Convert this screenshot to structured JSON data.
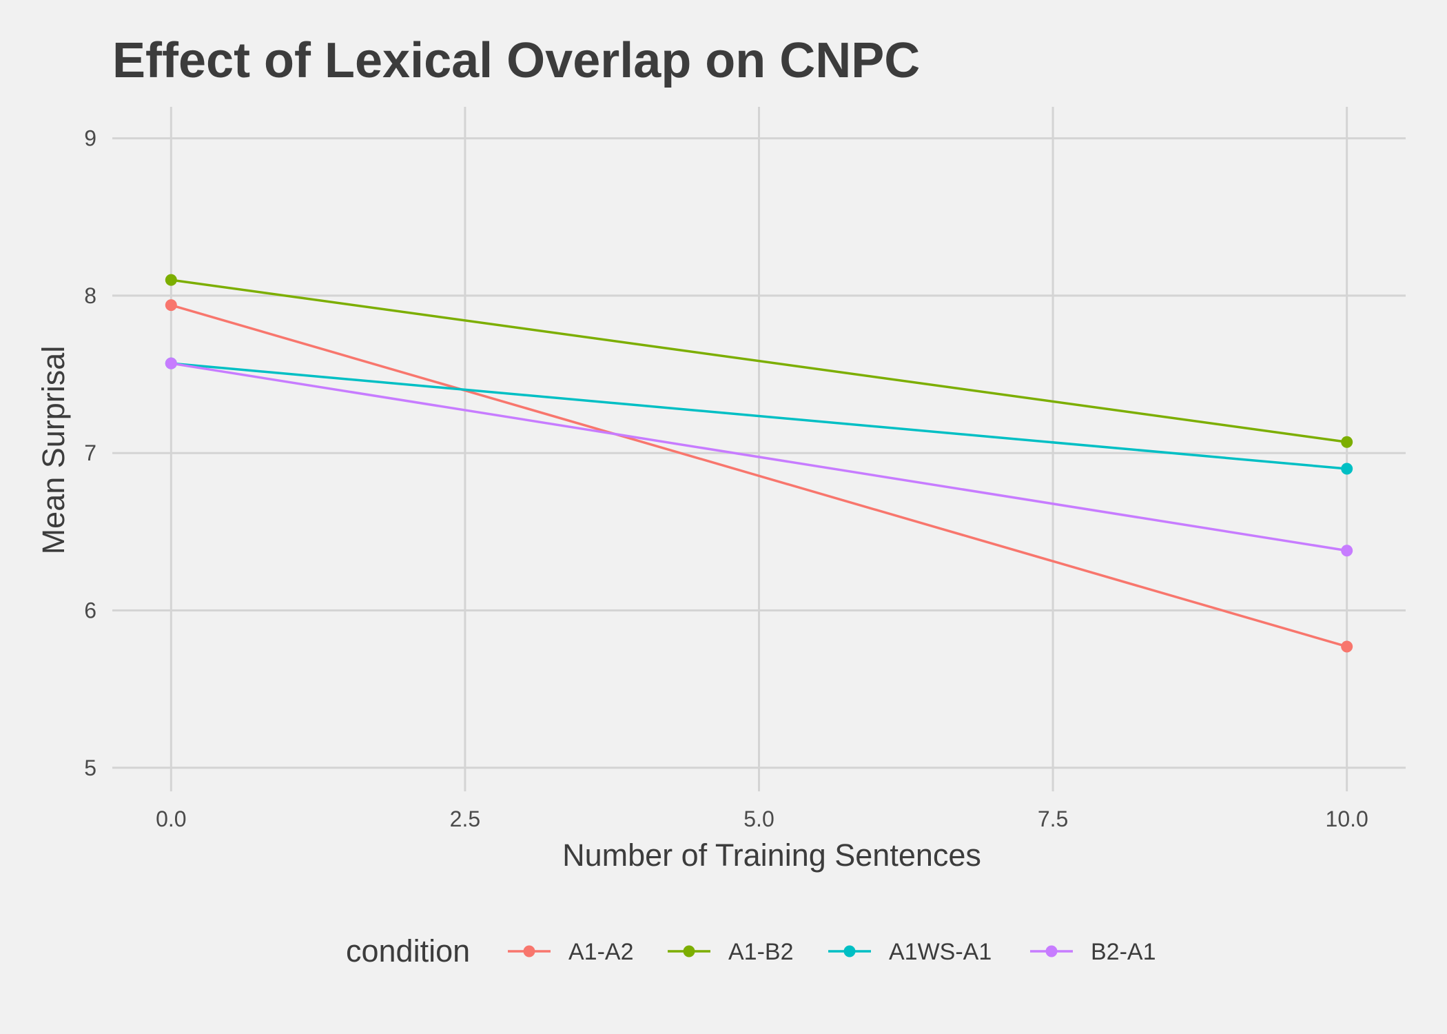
{
  "chart_data": {
    "type": "line",
    "title": "Effect of Lexical Overlap on CNPC",
    "xlabel": "Number of Training Sentences",
    "ylabel": "Mean Surprisal",
    "xlim": [
      -0.5,
      10.5
    ],
    "ylim": [
      4.85,
      9.2
    ],
    "x_ticks": [
      0,
      2.5,
      5,
      7.5,
      10
    ],
    "x_tick_labels": [
      "0.0",
      "2.5",
      "5.0",
      "7.5",
      "10.0"
    ],
    "y_ticks": [
      5,
      6,
      7,
      8,
      9
    ],
    "y_tick_labels": [
      "5",
      "6",
      "7",
      "8",
      "9"
    ],
    "grid": true,
    "legend": {
      "title": "condition",
      "position": "bottom"
    },
    "x": [
      0,
      10
    ],
    "series": [
      {
        "name": "A1-A2",
        "color": "#F8766D",
        "values": [
          7.94,
          5.77
        ]
      },
      {
        "name": "A1-B2",
        "color": "#7CAE00",
        "values": [
          8.1,
          7.07
        ]
      },
      {
        "name": "A1WS-A1",
        "color": "#00BFC4",
        "values": [
          7.57,
          6.9
        ]
      },
      {
        "name": "B2-A1",
        "color": "#C77CFF",
        "values": [
          7.57,
          6.38
        ]
      }
    ]
  }
}
